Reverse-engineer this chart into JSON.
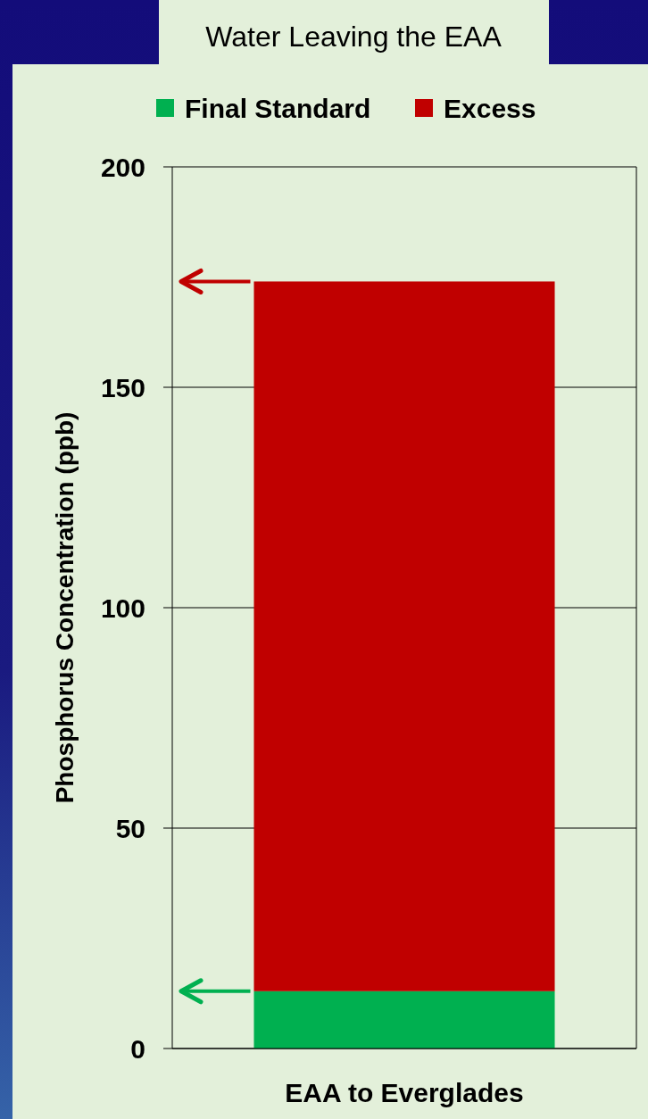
{
  "chart_data": {
    "type": "bar",
    "title": "Water Leaving the EAA",
    "categories": [
      "EAA to Everglades"
    ],
    "stacked": true,
    "series": [
      {
        "name": "Final Standard",
        "color": "#00b050",
        "values": [
          13
        ]
      },
      {
        "name": "Excess",
        "color": "#c00000",
        "values": [
          161
        ]
      }
    ],
    "ylabel": "Phosphorus Concentration (ppb)",
    "ylim": [
      0,
      200
    ],
    "yticks": [
      0,
      50,
      100,
      150,
      200
    ],
    "grid": "y",
    "legend": "top"
  }
}
